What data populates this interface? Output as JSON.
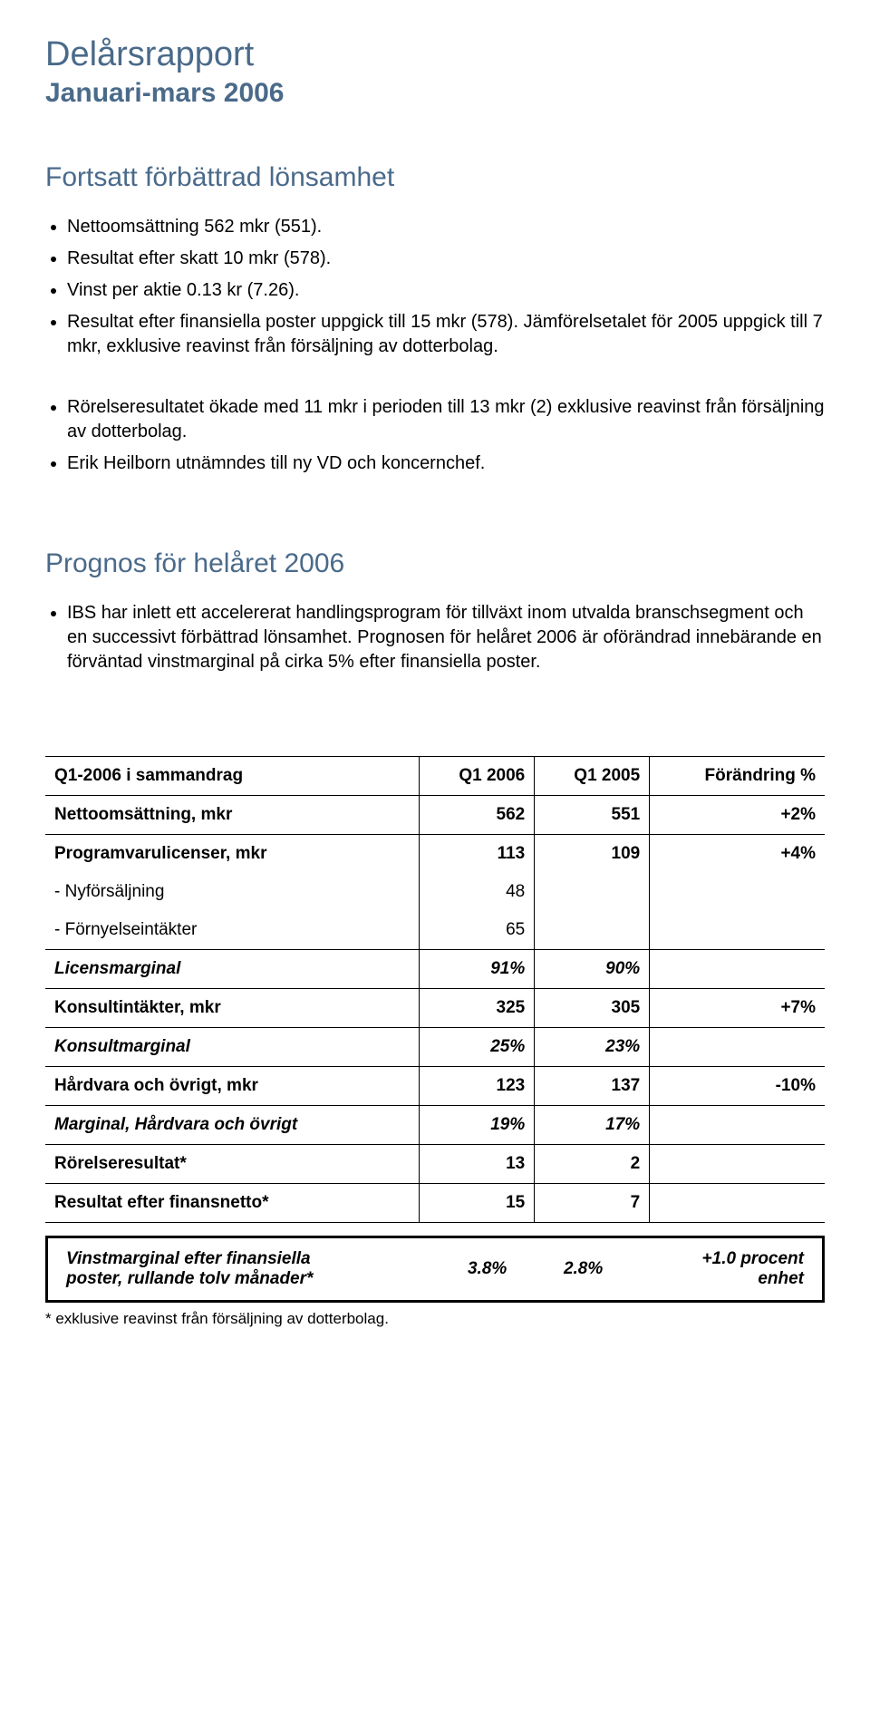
{
  "title_main": "Delårsrapport",
  "title_sub": "Januari-mars 2006",
  "section1_heading": "Fortsatt förbättrad lönsamhet",
  "bullets1": [
    "Nettoomsättning 562 mkr (551).",
    "Resultat efter skatt 10 mkr (578).",
    "Vinst per aktie 0.13 kr (7.26).",
    "Resultat efter finansiella poster uppgick till 15 mkr (578). Jämförelsetalet för 2005 uppgick till 7 mkr, exklusive reavinst från försäljning av dotterbolag."
  ],
  "bullets2": [
    "Rörelseresultatet ökade med 11 mkr i perioden till 13 mkr (2) exklusive reavinst från försäljning av dotterbolag.",
    "Erik Heilborn utnämndes till ny VD och koncernchef."
  ],
  "section2_heading": "Prognos för helåret 2006",
  "bullets3": [
    "IBS har inlett ett accelererat handlingsprogram för tillväxt inom utvalda branschsegment och en successivt förbättrad lönsamhet. Prognosen för helåret 2006 är oförändrad innebärande en förväntad vinstmarginal på cirka 5% efter finansiella poster."
  ],
  "table": {
    "headers": [
      "Q1-2006 i sammandrag",
      "Q1 2006",
      "Q1 2005",
      "Förändring %"
    ],
    "rows": [
      {
        "label": "Nettoomsättning, mkr",
        "c1": "562",
        "c2": "551",
        "c3": "+2%",
        "bold": true,
        "ul": true
      },
      {
        "label": "Programvarulicenser, mkr",
        "c1": "113",
        "c2": "109",
        "c3": "+4%",
        "bold": true,
        "ul": false
      },
      {
        "label": "- Nyförsäljning",
        "c1": "48",
        "c2": "",
        "c3": "",
        "bold": false,
        "ul": false
      },
      {
        "label": "- Förnyelseintäkter",
        "c1": "65",
        "c2": "",
        "c3": "",
        "bold": false,
        "ul": true
      },
      {
        "label": "Licensmarginal",
        "c1": "91%",
        "c2": "90%",
        "c3": "",
        "bold": true,
        "italic": true,
        "ul": true
      },
      {
        "label": "Konsultintäkter, mkr",
        "c1": "325",
        "c2": "305",
        "c3": "+7%",
        "bold": true,
        "ul": true
      },
      {
        "label": "Konsultmarginal",
        "c1": "25%",
        "c2": "23%",
        "c3": "",
        "bold": true,
        "italic": true,
        "ul": true
      },
      {
        "label": "Hårdvara och övrigt, mkr",
        "c1": "123",
        "c2": "137",
        "c3": "-10%",
        "bold": true,
        "ul": true
      },
      {
        "label": "Marginal, Hårdvara och övrigt",
        "c1": "19%",
        "c2": "17%",
        "c3": "",
        "bold": true,
        "italic": true,
        "ul": true
      },
      {
        "label": "Rörelseresultat*",
        "c1": "13",
        "c2": "2",
        "c3": "",
        "bold": true,
        "ul": true
      },
      {
        "label": "Resultat efter finansnetto*",
        "c1": "15",
        "c2": "7",
        "c3": "",
        "bold": true,
        "ul": true
      }
    ]
  },
  "highlight": {
    "label_line1": "Vinstmarginal efter finansiella",
    "label_line2": "poster, rullande tolv månader*",
    "c1": "3.8%",
    "c2": "2.8%",
    "c3_line1": "+1.0 procent",
    "c3_line2": "enhet"
  },
  "footnote": "*   exklusive reavinst från försäljning av dotterbolag."
}
